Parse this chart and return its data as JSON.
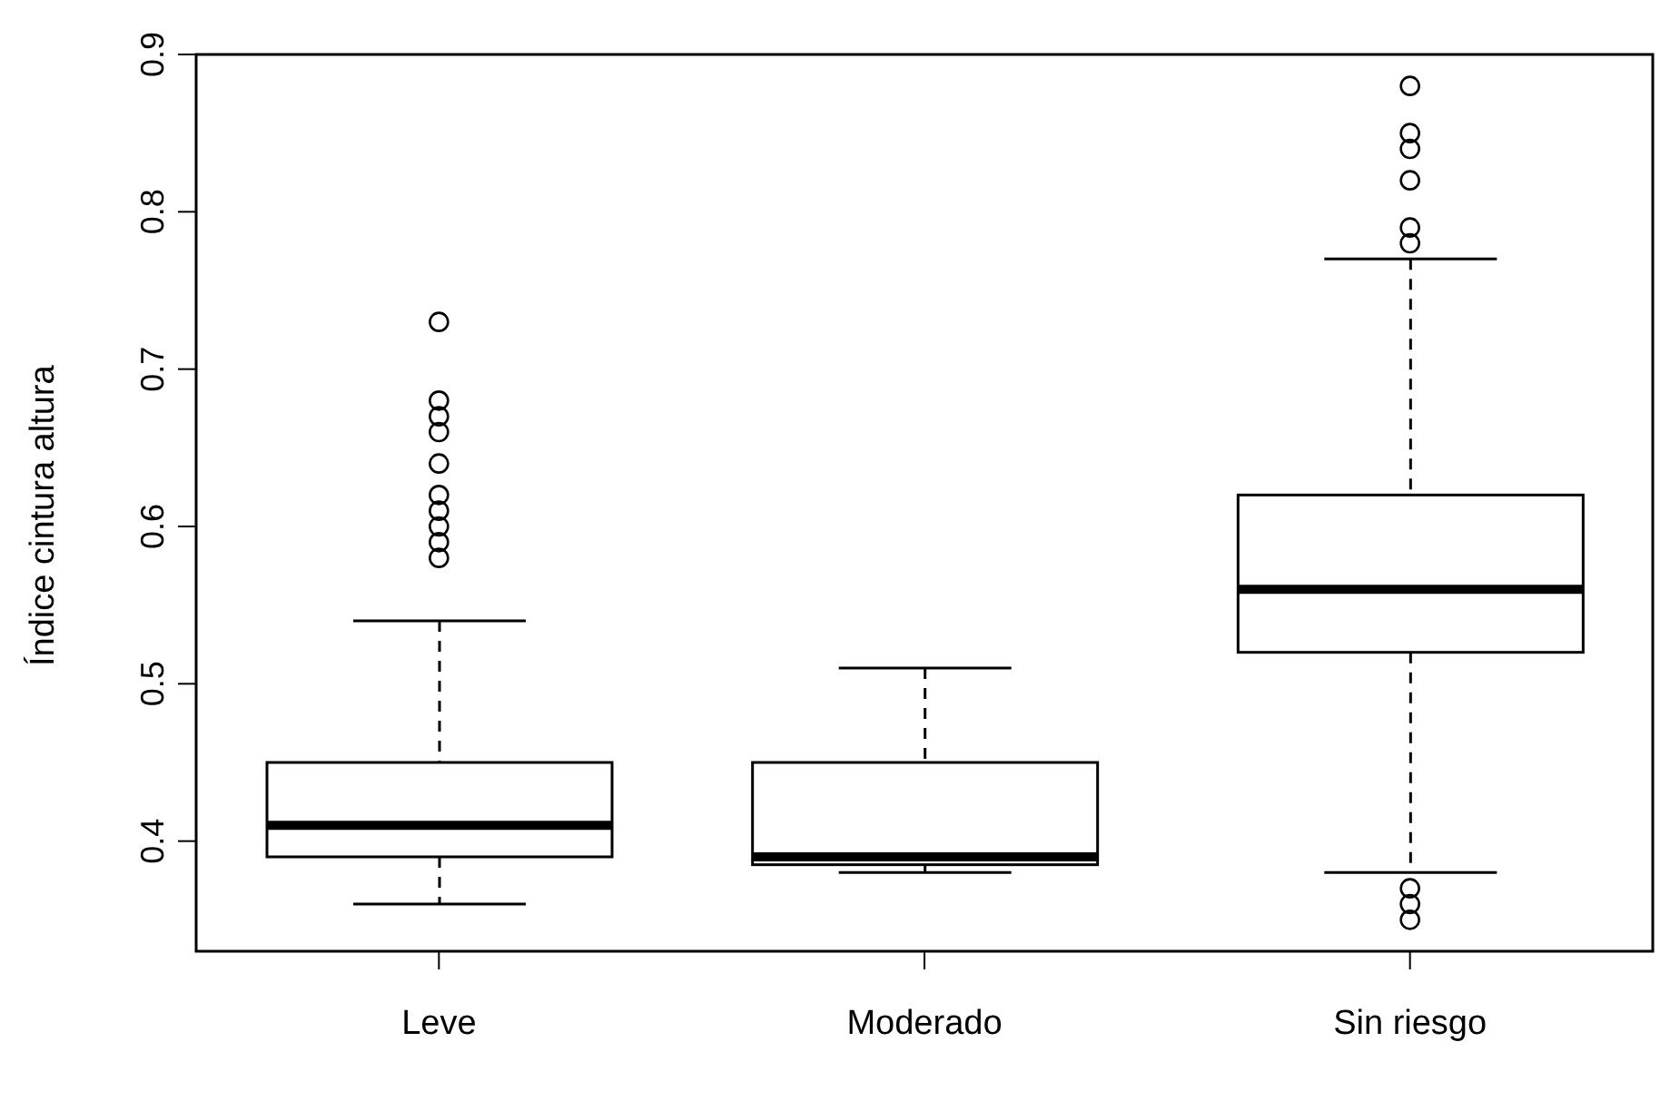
{
  "chart_data": {
    "type": "box",
    "ylabel": "Índice cintura altura",
    "categories": [
      "Leve",
      "Moderado",
      "Sin riesgo"
    ],
    "boxes": [
      {
        "low": 0.36,
        "q1": 0.39,
        "median": 0.41,
        "q3": 0.45,
        "high": 0.54,
        "outliers": [
          0.58,
          0.59,
          0.6,
          0.61,
          0.62,
          0.64,
          0.66,
          0.67,
          0.68,
          0.73
        ]
      },
      {
        "low": 0.38,
        "q1": 0.385,
        "median": 0.39,
        "q3": 0.45,
        "high": 0.51
      },
      {
        "low": 0.38,
        "q1": 0.52,
        "median": 0.56,
        "q3": 0.62,
        "high": 0.77,
        "outliers": [
          0.35,
          0.36,
          0.37,
          0.78,
          0.79,
          0.82,
          0.84,
          0.85,
          0.88
        ]
      }
    ],
    "color": "#000000",
    "ylim": [
      0.33,
      0.9
    ],
    "yticks": [
      0.4,
      0.5,
      0.6,
      0.7,
      0.8,
      0.9
    ],
    "grid": false,
    "marker": "circle"
  }
}
